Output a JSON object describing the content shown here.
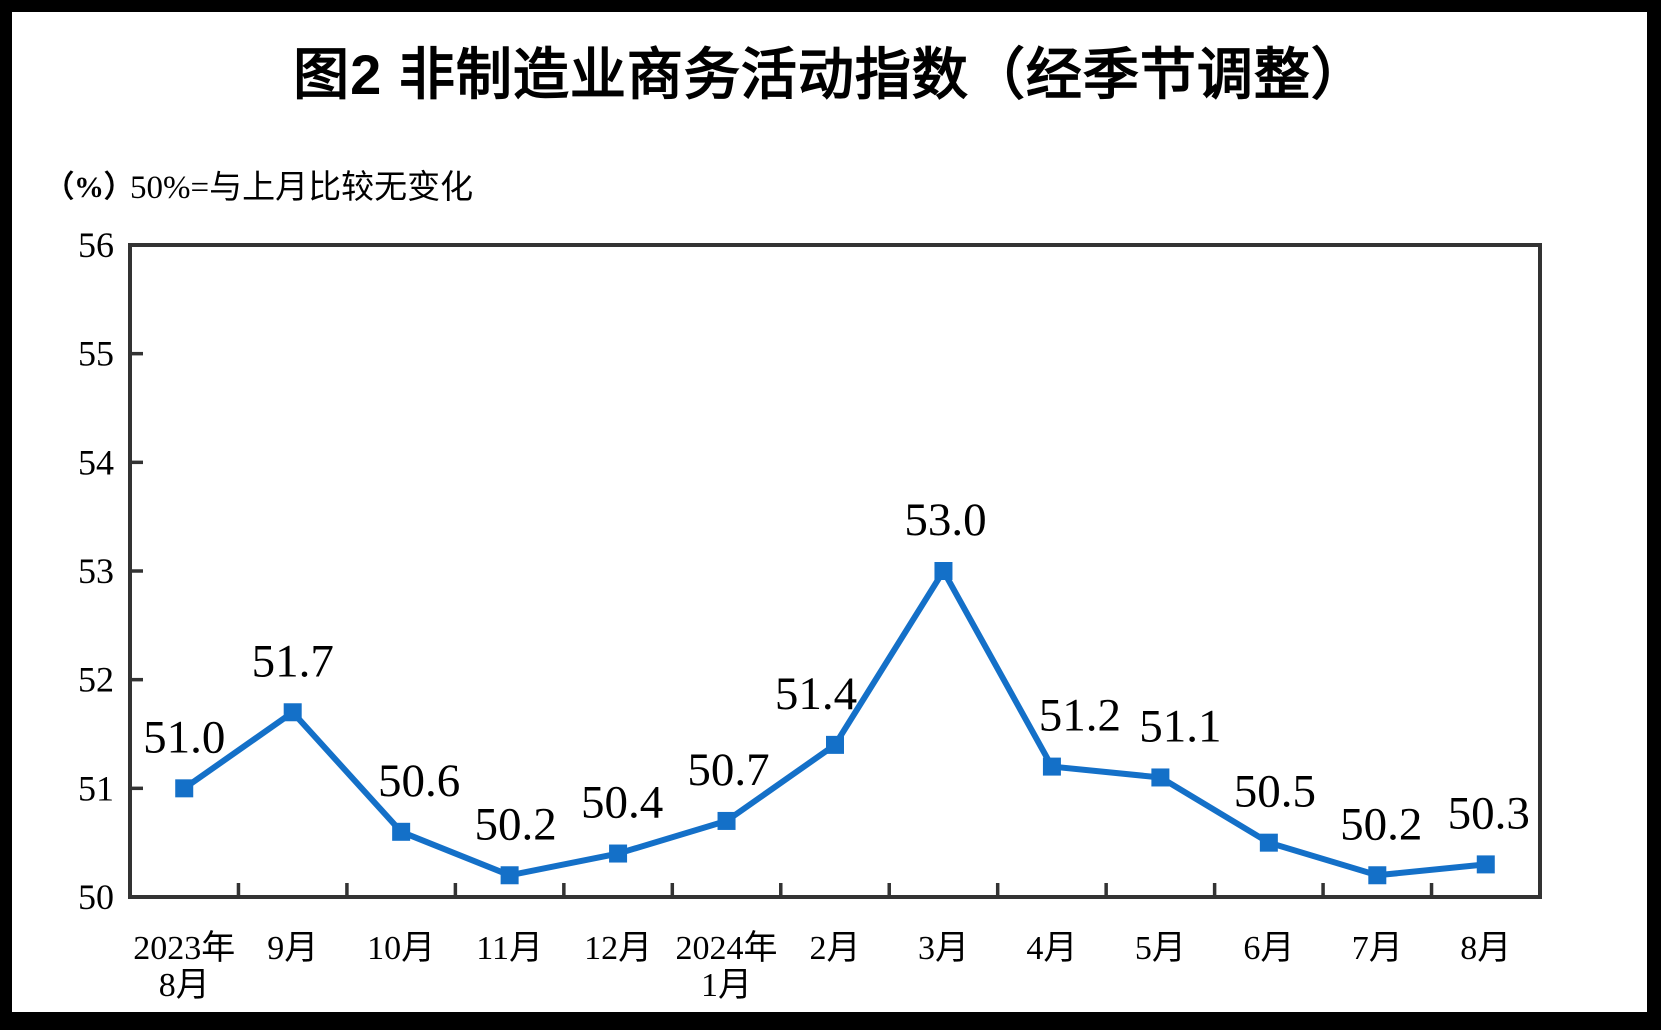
{
  "chart_data": {
    "type": "line",
    "title": "图2  非制造业商务活动指数（经季节调整）",
    "unit_label": "（%）",
    "note": "50%=与上月比较无变化",
    "categories": [
      [
        "2023年",
        "8月"
      ],
      [
        "9月"
      ],
      [
        "10月"
      ],
      [
        "11月"
      ],
      [
        "12月"
      ],
      [
        "2024年",
        "1月"
      ],
      [
        "2月"
      ],
      [
        "3月"
      ],
      [
        "4月"
      ],
      [
        "5月"
      ],
      [
        "6月"
      ],
      [
        "7月"
      ],
      [
        "8月"
      ]
    ],
    "values": [
      51.0,
      51.7,
      50.6,
      50.2,
      50.4,
      50.7,
      51.4,
      53.0,
      51.2,
      51.1,
      50.5,
      50.2,
      50.3
    ],
    "data_labels": [
      "51.0",
      "51.7",
      "50.6",
      "50.2",
      "50.4",
      "50.7",
      "51.4",
      "53.0",
      "51.2",
      "51.1",
      "50.5",
      "50.2",
      "50.3"
    ],
    "ylim": [
      50,
      56
    ],
    "y_ticks": [
      50,
      51,
      52,
      53,
      54,
      55,
      56
    ],
    "grid": false,
    "legend": false,
    "marker": "square",
    "line_color": "#1470C8",
    "axis_color": "#333333",
    "text_color": "#000000",
    "background_color": "#FFFFFF",
    "frame_color": "#000000",
    "label_dx": [
      0,
      0,
      18,
      6,
      4,
      2,
      -19,
      2,
      28,
      20,
      6,
      4,
      3
    ]
  }
}
